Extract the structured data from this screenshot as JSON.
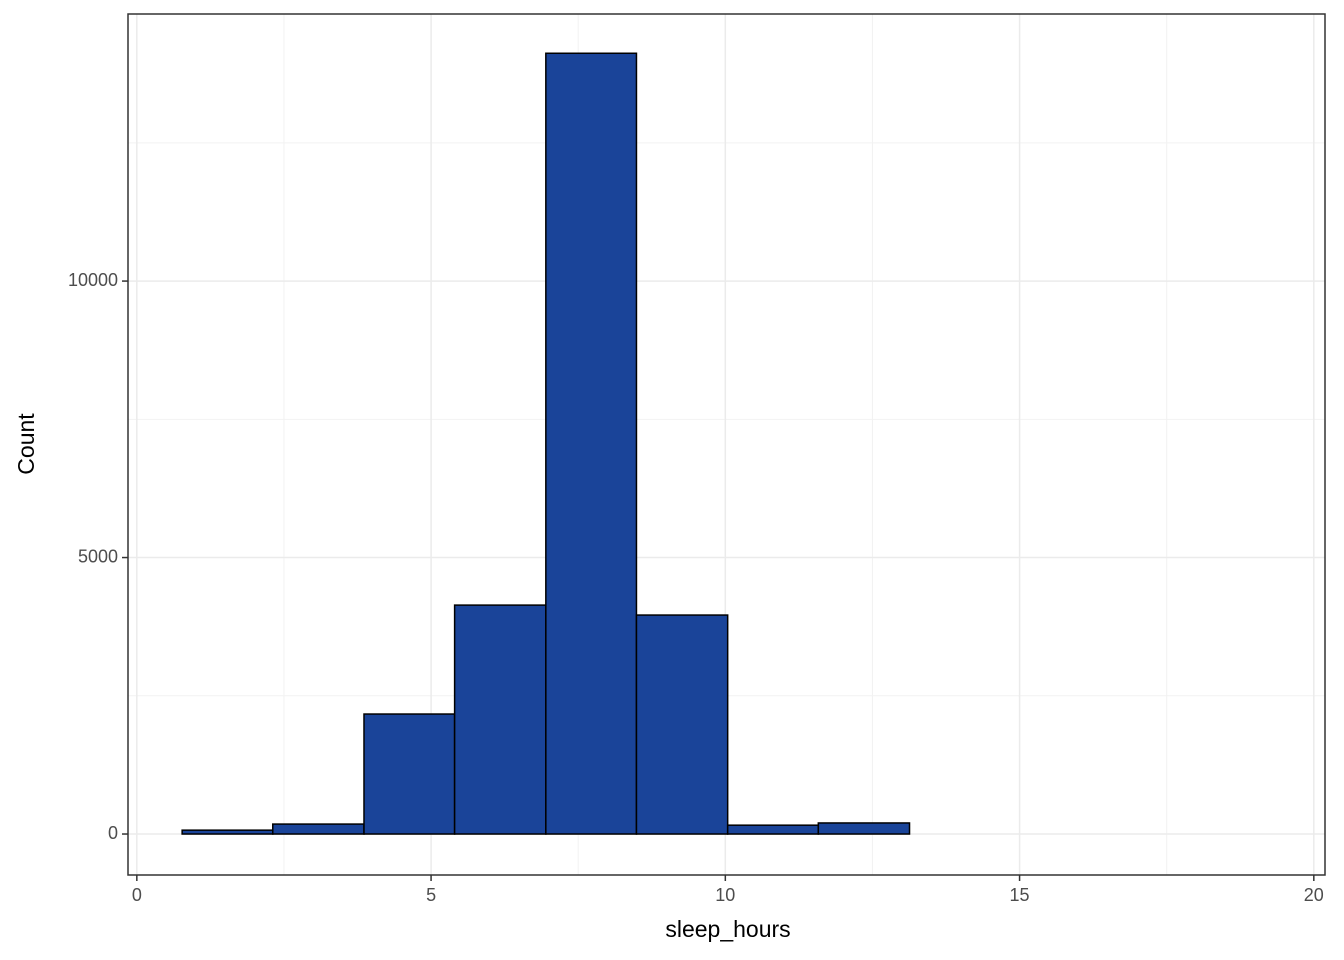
{
  "chart_data": {
    "type": "histogram",
    "x_label": "sleep_hours",
    "y_label": "Count",
    "bins": [
      0.77,
      2.31,
      3.86,
      5.4,
      6.95,
      8.49,
      10.04,
      11.58,
      13.13,
      14.67,
      16.22,
      17.76,
      19.31
    ],
    "values": [
      70,
      180,
      2170,
      4140,
      14120,
      3960,
      160,
      200,
      0,
      0,
      0,
      0
    ],
    "color": "#1a4499",
    "xlim": [
      -0.15,
      20.19
    ],
    "xticks": [
      0,
      5,
      10,
      15,
      20
    ],
    "ylim": [
      -741,
      14830
    ],
    "yticks": [
      0,
      5000,
      10000
    ],
    "grid": true
  }
}
